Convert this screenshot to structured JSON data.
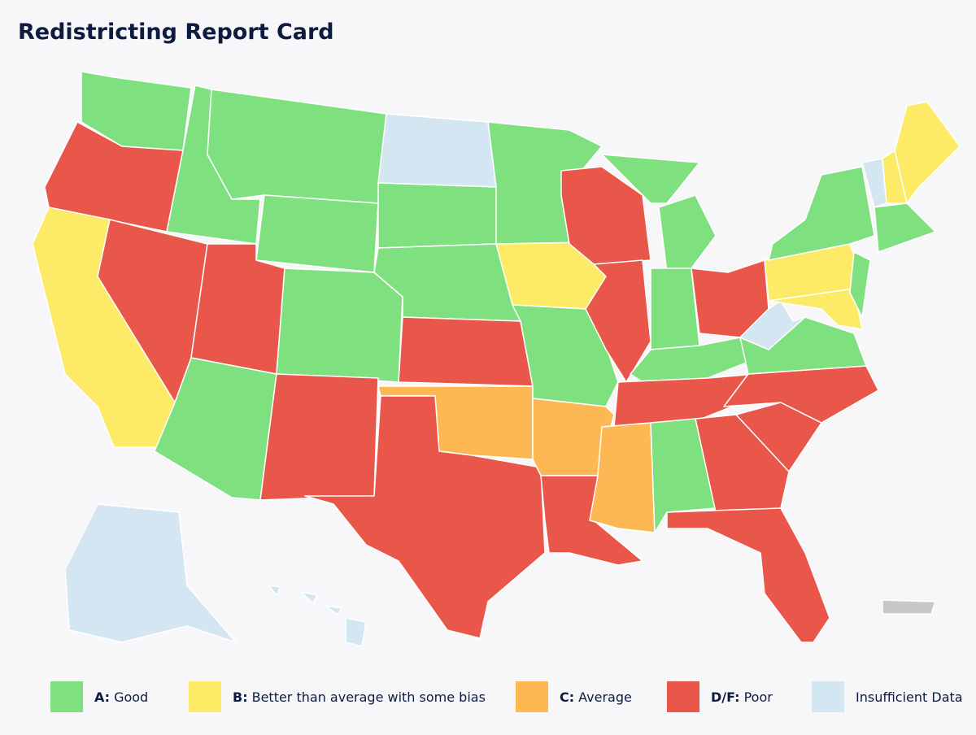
{
  "title": "Redistricting Report Card",
  "legend": [
    {
      "grade": "A:",
      "label": "Good",
      "color": "#7fe07f"
    },
    {
      "grade": "B:",
      "label": "Better than average with some bias",
      "color": "#fdeb68"
    },
    {
      "grade": "C:",
      "label": "Average",
      "color": "#fdb853"
    },
    {
      "grade": "D/F:",
      "label": "Poor",
      "color": "#e8574a"
    },
    {
      "label": "Insufficient Data",
      "color": "#d5e6f3"
    }
  ]
}
